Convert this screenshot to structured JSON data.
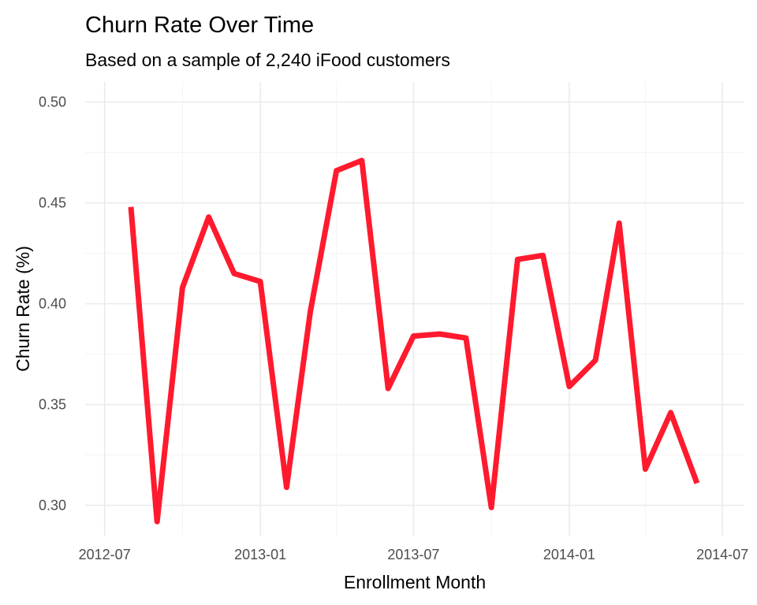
{
  "chart_data": {
    "type": "line",
    "title": "Churn Rate Over Time",
    "subtitle": "Based on a sample of 2,240 iFood customers",
    "xlabel": "Enrollment Month",
    "ylabel": "Churn Rate (%)",
    "ylim": [
      0.285,
      0.51
    ],
    "xlim": [
      "2012-06-08",
      "2014-07-27"
    ],
    "grid": true,
    "line_color": "#ff1a2e",
    "x_ticks": [
      "2012-07",
      "2013-01",
      "2013-07",
      "2014-01",
      "2014-07"
    ],
    "y_ticks": [
      "0.30",
      "0.35",
      "0.40",
      "0.45",
      "0.50"
    ],
    "series": [
      {
        "x": [
          "2012-08-01",
          "2012-09-01",
          "2012-10-01",
          "2012-11-01",
          "2012-12-01",
          "2013-01-01",
          "2013-02-01",
          "2013-03-01",
          "2013-04-01",
          "2013-05-01",
          "2013-06-01",
          "2013-07-01",
          "2013-08-01",
          "2013-09-01",
          "2013-10-01",
          "2013-11-01",
          "2013-12-01",
          "2014-01-01",
          "2014-02-01",
          "2014-03-01",
          "2014-04-01",
          "2014-05-01",
          "2014-06-01"
        ],
        "values": [
          0.448,
          0.292,
          0.408,
          0.443,
          0.415,
          0.411,
          0.309,
          0.396,
          0.466,
          0.471,
          0.358,
          0.384,
          0.385,
          0.383,
          0.299,
          0.422,
          0.424,
          0.359,
          0.372,
          0.44,
          0.318,
          0.346,
          0.311
        ]
      }
    ]
  }
}
